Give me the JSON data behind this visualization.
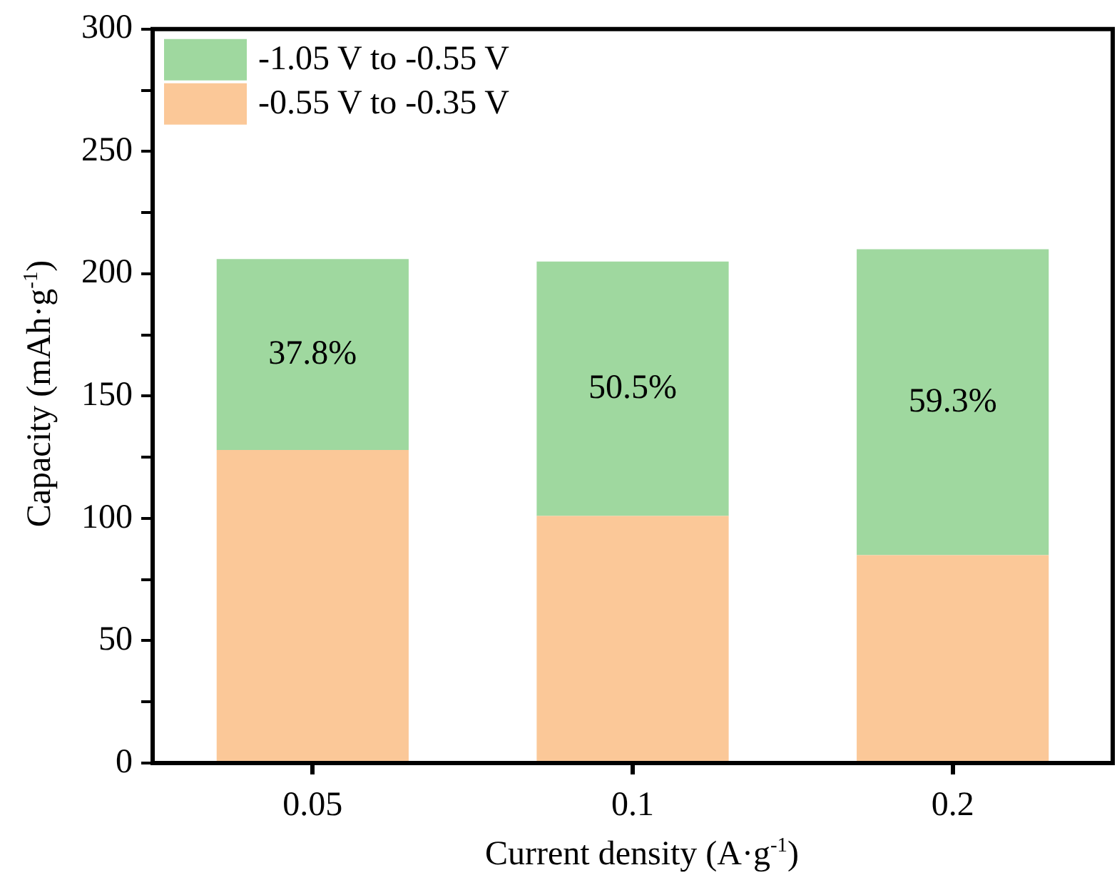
{
  "chart_data": {
    "type": "bar",
    "stacked": true,
    "xlabel": "Current density (A·g$^{-1}$)",
    "ylabel": "Capacity (mAh·g$^{-1}$)",
    "categories": [
      "0.05",
      "0.1",
      "0.2"
    ],
    "series": [
      {
        "name": "-0.55 V to -0.35 V",
        "color": "#fbc898",
        "values": [
          128,
          101,
          85
        ]
      },
      {
        "name": "-1.05 V to -0.55 V",
        "color": "#9fd89f",
        "values": [
          78,
          104,
          125
        ]
      }
    ],
    "annotations": [
      "37.8%",
      "50.5%",
      "59.3%"
    ],
    "ylim": [
      0,
      300
    ],
    "yticks": [
      0,
      {
        "value": 25,
        "label": null
      },
      50,
      {
        "value": 75,
        "label": null
      },
      100,
      {
        "value": 125,
        "label": null
      },
      150,
      {
        "value": 175,
        "label": null
      },
      200,
      {
        "value": 225,
        "label": null
      },
      250,
      {
        "value": 275,
        "label": null
      },
      300
    ],
    "grid": false,
    "legend": "top left"
  }
}
